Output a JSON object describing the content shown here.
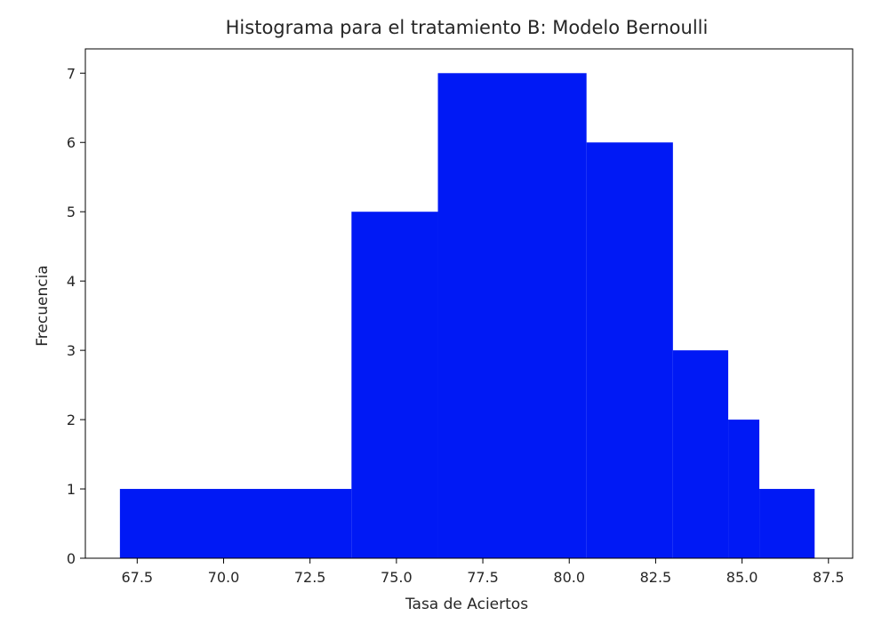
{
  "chart_data": {
    "type": "bar",
    "title": "Histograma para el tratamiento B: Modelo Bernoulli",
    "xlabel": "Tasa de Aciertos",
    "ylabel": "Frecuencia",
    "bin_edges": [
      67.0,
      73.7,
      76.2,
      80.5,
      83.0,
      84.6,
      85.5,
      87.1
    ],
    "values": [
      1,
      5,
      7,
      6,
      3,
      2,
      1
    ],
    "xlim": [
      66.0,
      88.2
    ],
    "ylim": [
      0,
      7.35
    ],
    "xticks": [
      "67.5",
      "70.0",
      "72.5",
      "75.0",
      "77.5",
      "80.0",
      "82.5",
      "85.0",
      "87.5"
    ],
    "yticks": [
      "0",
      "1",
      "2",
      "3",
      "4",
      "5",
      "6",
      "7"
    ],
    "bar_color": "#0019f5",
    "grid": false,
    "legend": false
  }
}
